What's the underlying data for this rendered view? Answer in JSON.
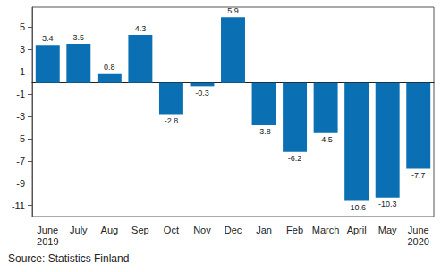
{
  "chart_data": {
    "type": "bar",
    "categories": [
      "June\n2019",
      "July",
      "Aug",
      "Sep",
      "Oct",
      "Nov",
      "Dec",
      "Jan",
      "Feb",
      "March",
      "April",
      "May",
      "June\n2020"
    ],
    "values": [
      3.4,
      3.5,
      0.8,
      4.3,
      -2.8,
      -0.3,
      5.9,
      -3.8,
      -6.2,
      -4.5,
      -10.6,
      -10.3,
      -7.7
    ],
    "color": "#0a6fb3",
    "ylim": [
      -12,
      6.8
    ],
    "yticks": [
      -11,
      -9,
      -7,
      -5,
      -3,
      -1,
      1,
      3,
      5
    ],
    "grid": false,
    "data_labels": true,
    "source": "Source: Statistics Finland"
  }
}
